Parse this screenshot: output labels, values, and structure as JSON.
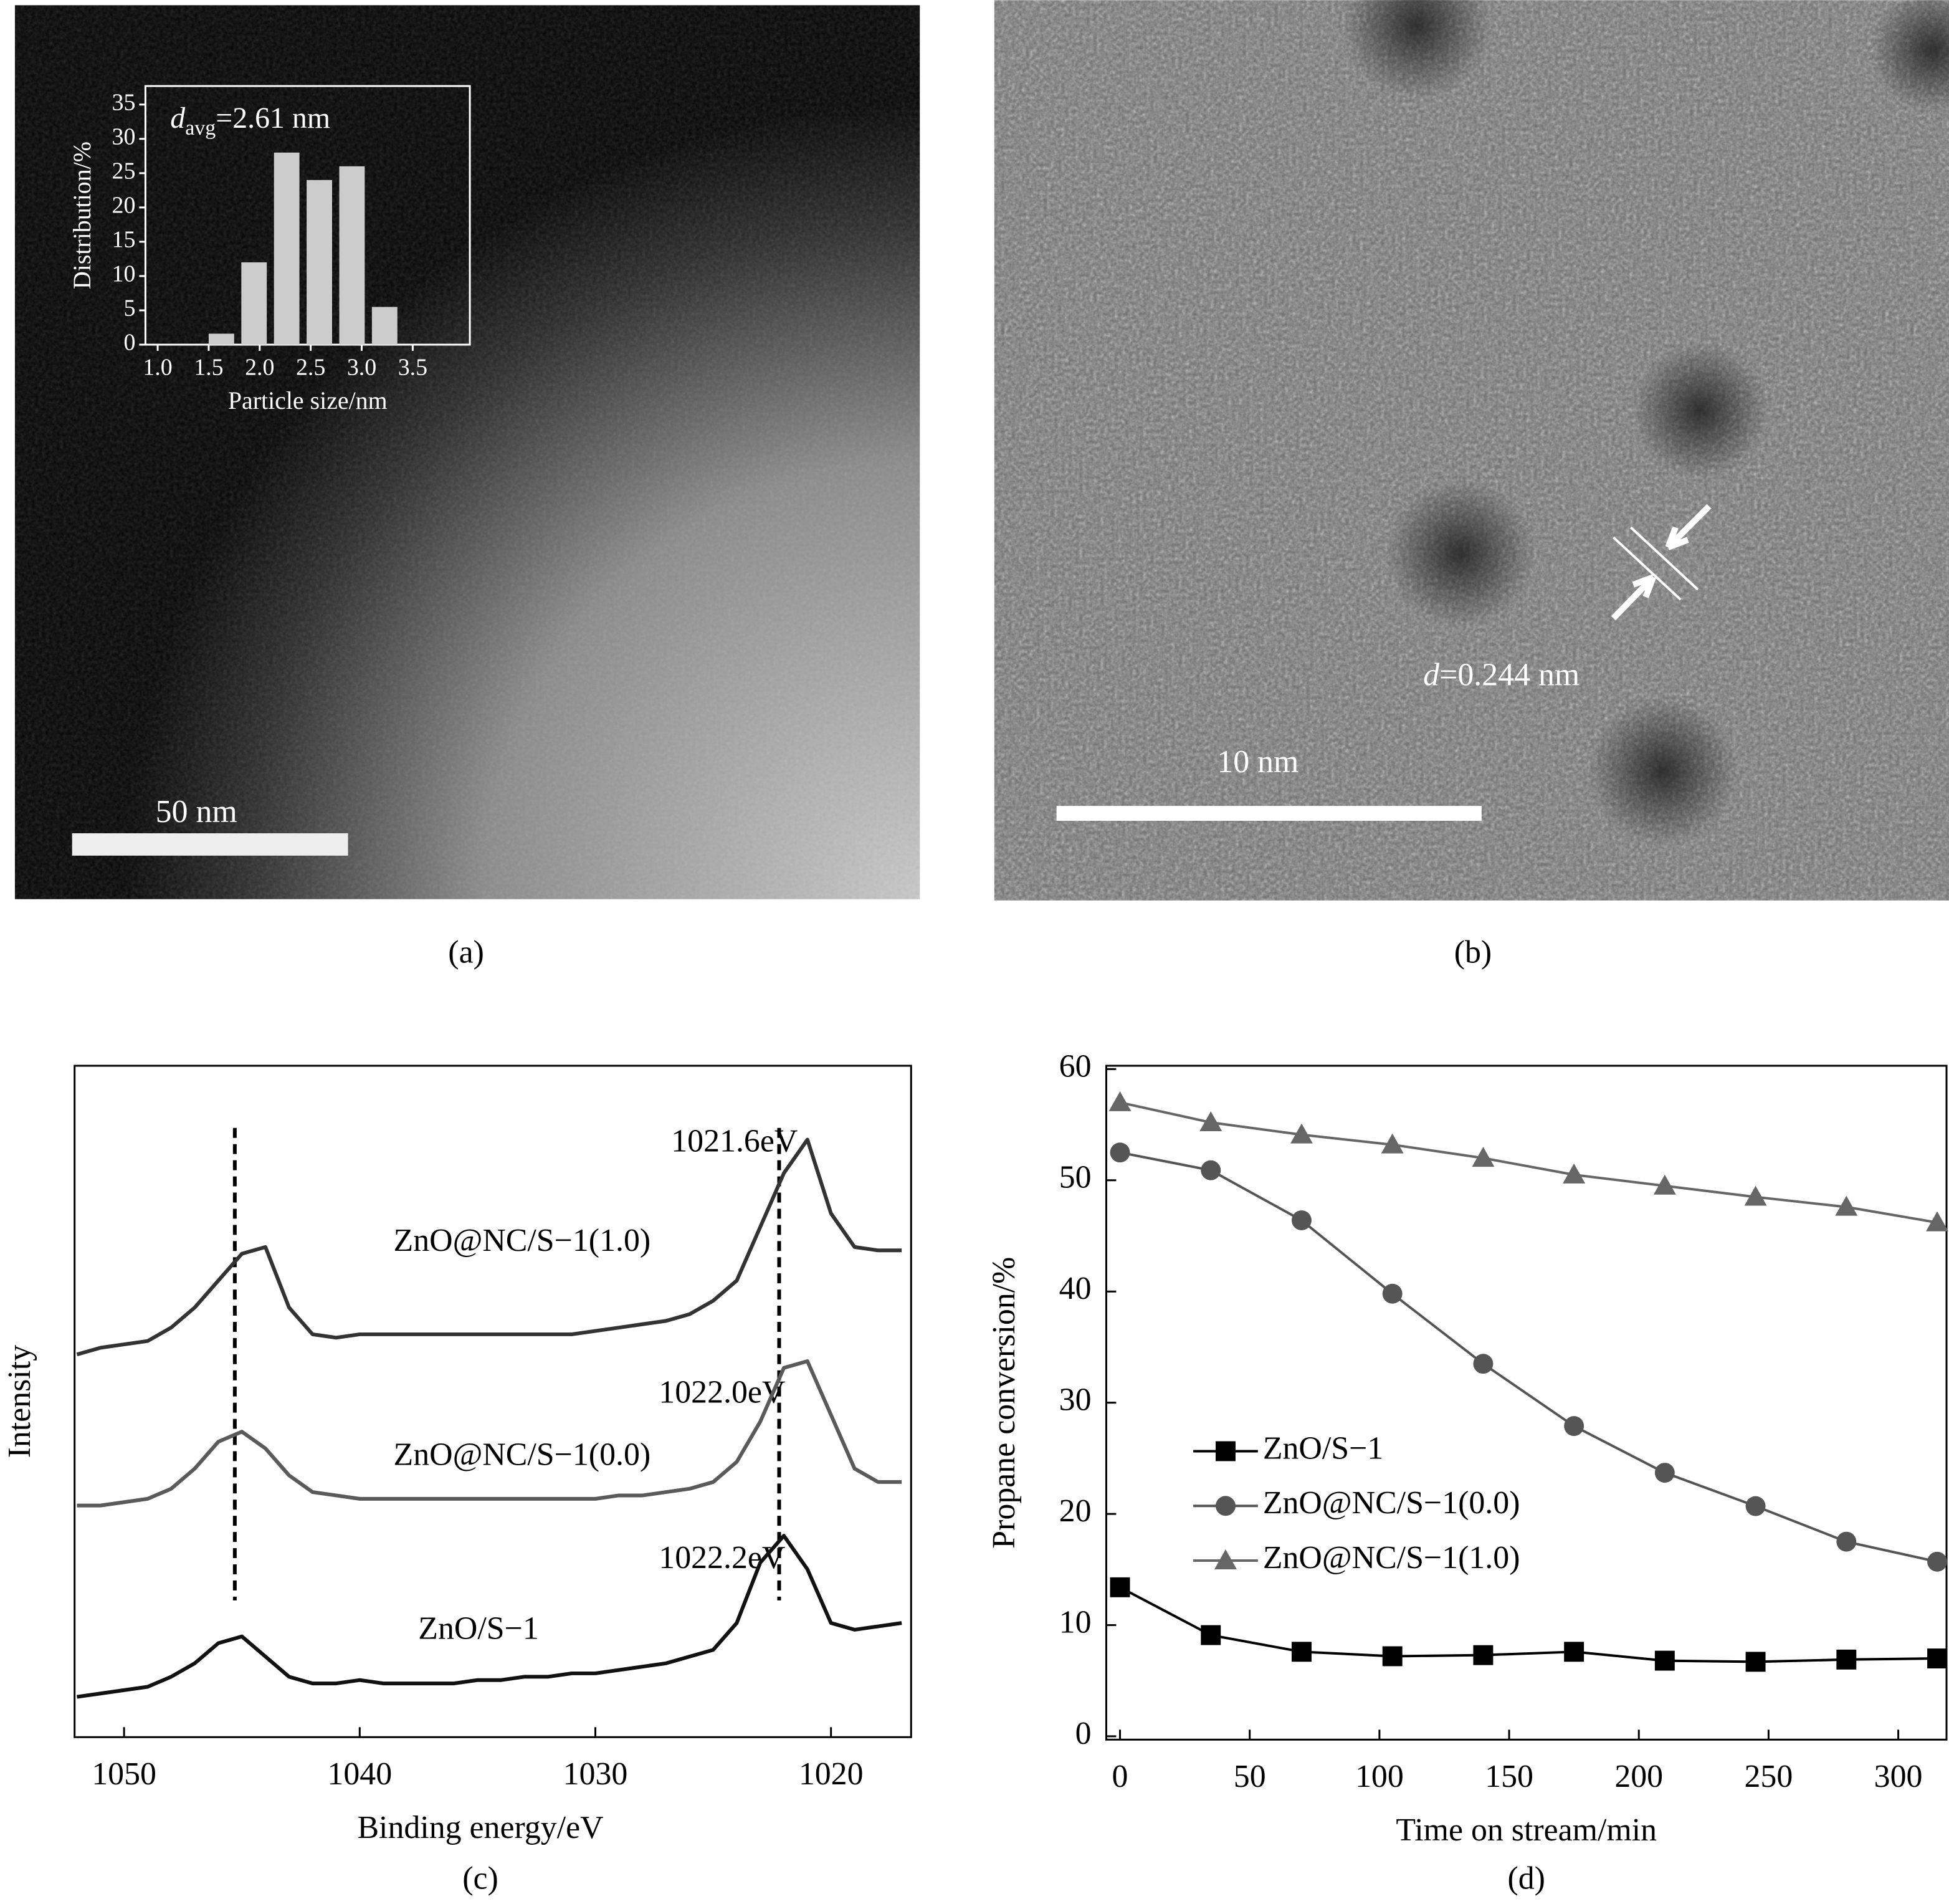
{
  "images": [
    {
      "caption": "(a)",
      "scale_bar": "50 nm"
    },
    {
      "caption": "(b)",
      "scale_bar": "10 nm",
      "annotation": {
        "symbol": "d",
        "text": "=0.244 nm"
      }
    }
  ],
  "chart_data": [
    {
      "type": "histogram",
      "xlabel": "Particle size/nm",
      "ylabel": "Distribution/%",
      "annotation": {
        "symbol": "d",
        "subscript": "avg",
        "text": "=2.61 nm"
      },
      "bins": [
        1.5,
        1.82,
        2.14,
        2.46,
        2.78,
        3.1,
        3.42
      ],
      "values": [
        1.6,
        12,
        28,
        24,
        26,
        5.5
      ],
      "color": "#cccccc",
      "xlim": [
        0.88,
        4.06
      ],
      "ylim": [
        0,
        37.7
      ],
      "xticks": [
        {
          "value": 1,
          "label": "1.0"
        },
        1.5,
        {
          "value": 2,
          "label": "2.0"
        },
        2.5,
        {
          "value": 3,
          "label": "3.0"
        },
        3.5
      ],
      "yticks": [
        0,
        5,
        10,
        15,
        20,
        25,
        30,
        35
      ]
    },
    {
      "type": "line",
      "caption": "(c)",
      "xlabel": "Binding energy/eV",
      "ylabel": "Intensity",
      "x": [
        1052,
        1051,
        1050,
        1049,
        1048,
        1047,
        1046,
        1045,
        1044,
        1043,
        1042,
        1041,
        1040,
        1039,
        1038,
        1037,
        1036,
        1035,
        1034,
        1033,
        1032,
        1031,
        1030,
        1029,
        1028,
        1027,
        1026,
        1025,
        1024,
        1023,
        1022,
        1021,
        1020,
        1019,
        1018,
        1017
      ],
      "series": [
        {
          "name": "ZnO@NC/S−1(1.0)",
          "color": "#333333",
          "values": [
            57,
            58,
            58.5,
            59,
            61,
            64,
            68,
            72,
            73,
            64,
            60,
            59.5,
            60,
            60,
            60,
            60,
            60,
            60,
            60,
            60,
            60,
            60,
            60.5,
            61,
            61.5,
            62,
            63,
            65,
            68,
            76,
            84,
            89,
            78,
            73,
            72.5,
            72.5
          ]
        },
        {
          "name": "ZnO@NC/S−1(0.0)",
          "color": "#5a5a5a",
          "values": [
            34.5,
            34.5,
            35,
            35.5,
            37,
            40,
            44,
            45.5,
            43,
            39,
            36.5,
            36,
            35.5,
            35.5,
            35.5,
            35.5,
            35.5,
            35.5,
            35.5,
            35.5,
            35.5,
            35.5,
            35.5,
            36,
            36,
            36.5,
            37,
            38,
            41,
            47,
            55,
            56,
            48,
            40,
            38,
            38
          ]
        },
        {
          "name": "ZnO/S−1",
          "color": "#111111",
          "values": [
            6,
            6.5,
            7,
            7.5,
            9,
            11,
            14,
            15,
            12,
            9,
            8,
            8,
            8.5,
            8,
            8,
            8,
            8,
            8.5,
            8.5,
            9,
            9,
            9.5,
            9.5,
            10,
            10.5,
            11,
            12,
            13,
            17,
            26,
            30,
            25,
            17,
            16,
            16.5,
            17
          ]
        }
      ],
      "reference_lines": [
        1045.3,
        1022.2
      ],
      "annotations": [
        "1021.6eV",
        "1022.0eV",
        "1022.2eV"
      ],
      "xlim": [
        1052.1,
        1016.6
      ],
      "ylim": [
        0,
        100
      ],
      "xticks": [
        1050,
        1040,
        1030,
        1020
      ]
    },
    {
      "type": "line",
      "caption": "(d)",
      "xlabel": "Time on stream/min",
      "ylabel": "Propane conversion/%",
      "x": [
        0,
        35,
        70,
        105,
        140,
        175,
        210,
        245,
        280,
        315
      ],
      "series": [
        {
          "name": "ZnO/S−1",
          "color": "#000000",
          "marker": "square",
          "values": [
            13.4,
            9.1,
            7.6,
            7.2,
            7.3,
            7.6,
            6.8,
            6.7,
            6.9,
            7.0
          ]
        },
        {
          "name": "ZnO@NC/S−1(0.0)",
          "color": "#555555",
          "marker": "circle",
          "values": [
            52.5,
            50.9,
            46.4,
            39.8,
            33.5,
            27.9,
            23.7,
            20.7,
            17.5,
            15.7
          ]
        },
        {
          "name": "ZnO@NC/S−1(1.0)",
          "color": "#666666",
          "marker": "triangle",
          "values": [
            57.0,
            55.2,
            54.1,
            53.2,
            52.0,
            50.5,
            49.5,
            48.5,
            47.6,
            46.2
          ]
        }
      ],
      "legend": "center-left",
      "xlim": [
        -5.3,
        318.6
      ],
      "ylim": [
        -0.3,
        60.3
      ],
      "xticks": [
        0,
        50,
        100,
        150,
        200,
        250,
        300
      ],
      "yticks": [
        0,
        10,
        20,
        30,
        40,
        50,
        60
      ]
    }
  ]
}
